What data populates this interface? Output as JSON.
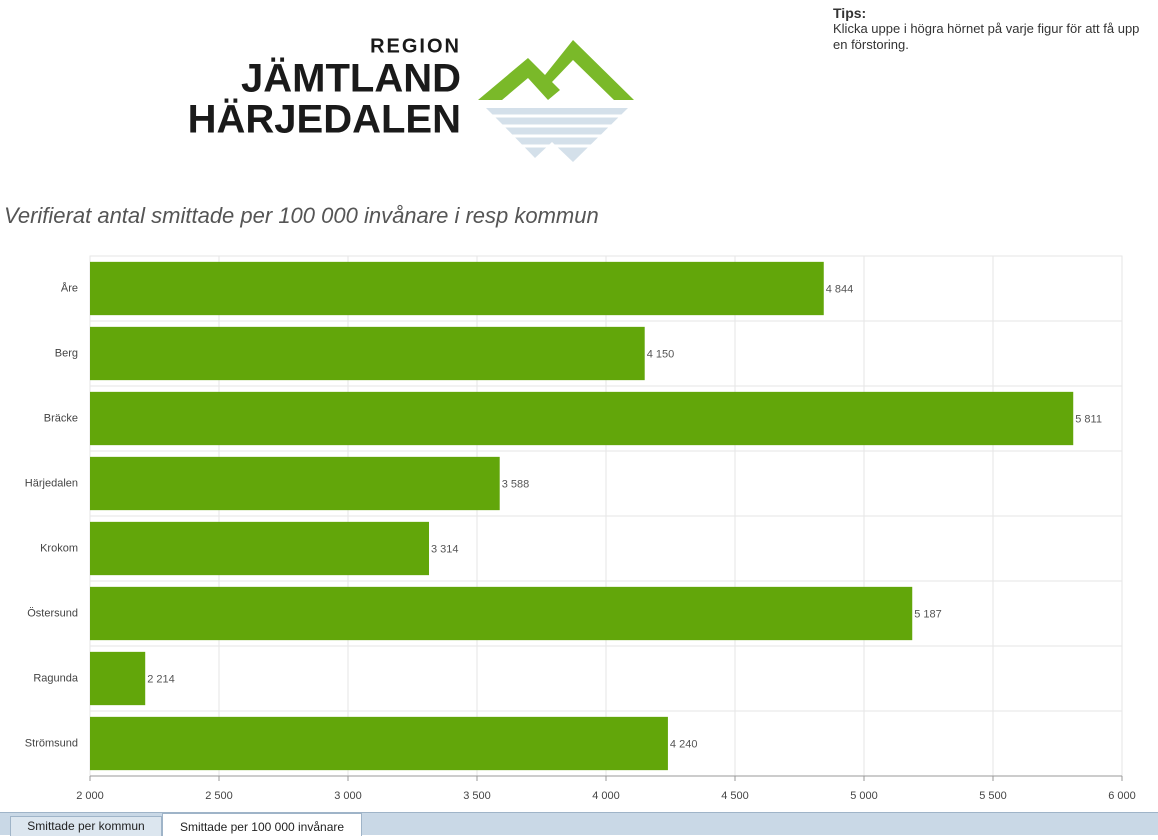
{
  "logo": {
    "line1": "REGION",
    "line2": "JÄMTLAND",
    "line3": "HÄRJEDALEN"
  },
  "tips": {
    "title": "Tips:",
    "text": "Klicka uppe i högra hörnet på varje figur för att få upp en förstoring."
  },
  "chart_data": {
    "type": "bar",
    "orientation": "horizontal",
    "title": "Verifierat antal smittade per 100 000 invånare i resp kommun",
    "categories": [
      "Åre",
      "Berg",
      "Bräcke",
      "Härjedalen",
      "Krokom",
      "Östersund",
      "Ragunda",
      "Strömsund"
    ],
    "values": [
      4844,
      4150,
      5811,
      3588,
      3314,
      5187,
      2214,
      4240
    ],
    "value_labels": [
      "4 844",
      "4 150",
      "5 811",
      "3 588",
      "3 314",
      "5 187",
      "2 214",
      "4 240"
    ],
    "color": "#62a60a",
    "xlim": [
      2000,
      6000
    ],
    "xticks": [
      {
        "value": 2000,
        "label": "2 000"
      },
      {
        "value": 2500,
        "label": "2 500"
      },
      {
        "value": 3000,
        "label": "3 000"
      },
      {
        "value": 3500,
        "label": "3 500"
      },
      {
        "value": 4000,
        "label": "4 000"
      },
      {
        "value": 4500,
        "label": "4 500"
      },
      {
        "value": 5000,
        "label": "5 000"
      },
      {
        "value": 5500,
        "label": "5 500"
      },
      {
        "value": 6000,
        "label": "6 000"
      }
    ],
    "grid": true
  },
  "tabs": [
    "Smittade per kommun",
    "Smittade per 100 000 invånare"
  ]
}
